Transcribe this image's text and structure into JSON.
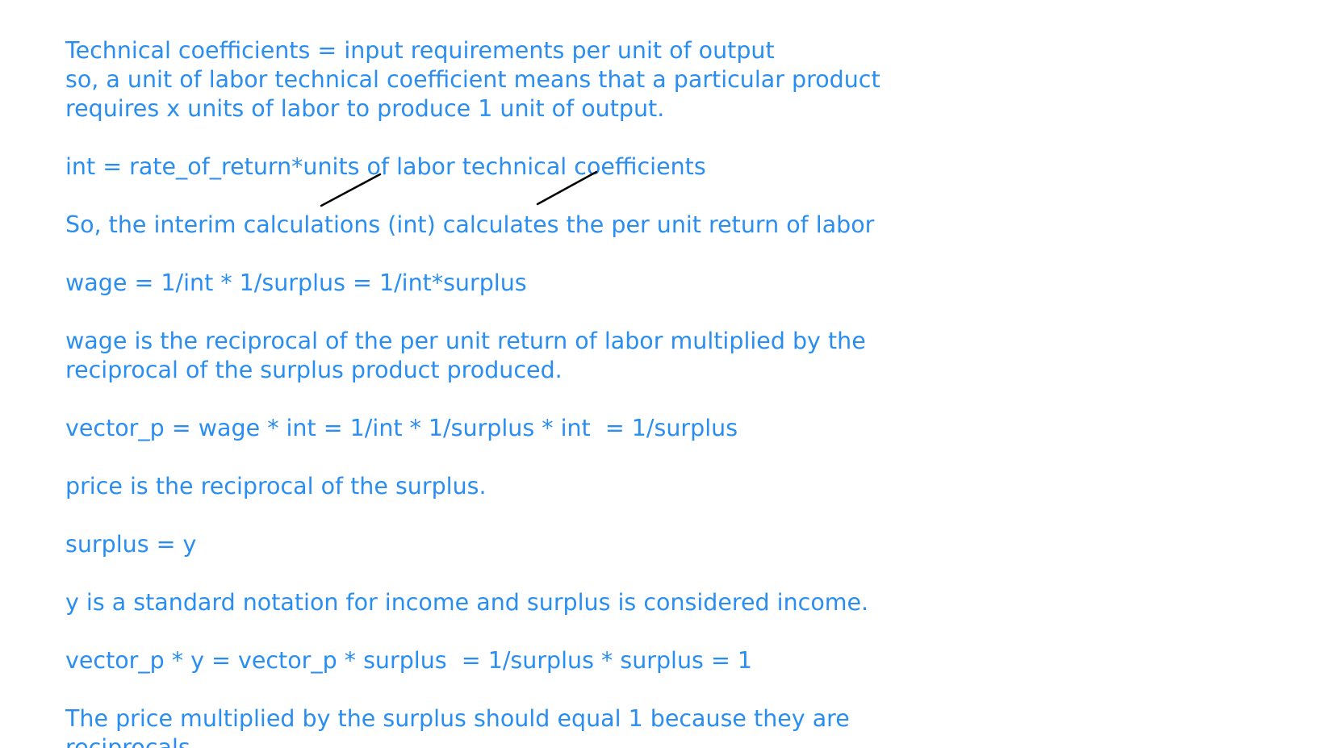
{
  "notes": {
    "lines": [
      "Technical coefficients = input requirements per unit of output",
      "so, a unit of labor technical coefficient means that a particular product",
      "requires x units of labor to produce 1 unit of output.",
      "",
      "int = rate_of_return*units of labor technical coefficients",
      "",
      "So, the interim calculations (int) calculates the per unit return of labor",
      "",
      "wage = 1/int * 1/surplus = 1/int*surplus",
      "",
      "wage is the reciprocal of the per unit return of labor multiplied by the",
      "reciprocal of the surplus product produced.",
      "",
      "vector_p = wage * int = 1/int * 1/surplus * int  = 1/surplus",
      "",
      "price is the reciprocal of the surplus.",
      "",
      "surplus = y",
      "",
      "y is a standard notation for income and surplus is considered income.",
      "",
      "vector_p * y = vector_p * surplus  = 1/surplus * surplus = 1",
      "",
      "The price multiplied by the surplus should equal 1 because they are",
      "reciprocals."
    ]
  },
  "colors": {
    "text": "#2a8ef0",
    "ink": "#000000",
    "background": "#ffffff"
  }
}
